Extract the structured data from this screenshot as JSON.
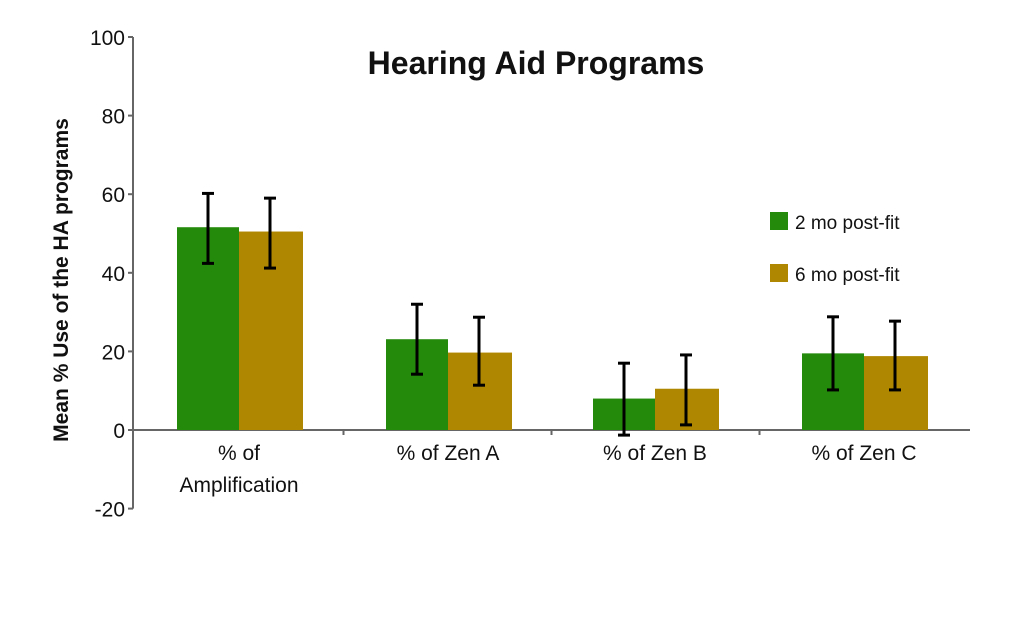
{
  "chart_data": {
    "type": "bar",
    "title": "Hearing Aid Programs",
    "xlabel": "",
    "ylabel": "Mean % Use of the HA programs",
    "ylim": [
      -20,
      100
    ],
    "yticks": [
      -20,
      0,
      20,
      40,
      60,
      80,
      100
    ],
    "grid": false,
    "legend_position": "right",
    "categories": [
      "% of Amplification",
      "% of Zen A",
      "% of Zen B",
      "% of Zen C"
    ],
    "series": [
      {
        "name": "2 mo post-fit",
        "color": "#238a0b",
        "values": [
          51.6,
          23.1,
          8.0,
          19.5
        ],
        "error_low": [
          42.4,
          14.2,
          -1.3,
          10.2
        ],
        "error_high": [
          60.2,
          32.0,
          17.0,
          28.8
        ]
      },
      {
        "name": "6 mo post-fit",
        "color": "#b08700",
        "values": [
          50.5,
          19.7,
          10.5,
          18.8
        ],
        "error_low": [
          41.2,
          11.4,
          1.3,
          10.2
        ],
        "error_high": [
          59.0,
          28.7,
          19.1,
          27.7
        ]
      }
    ]
  }
}
